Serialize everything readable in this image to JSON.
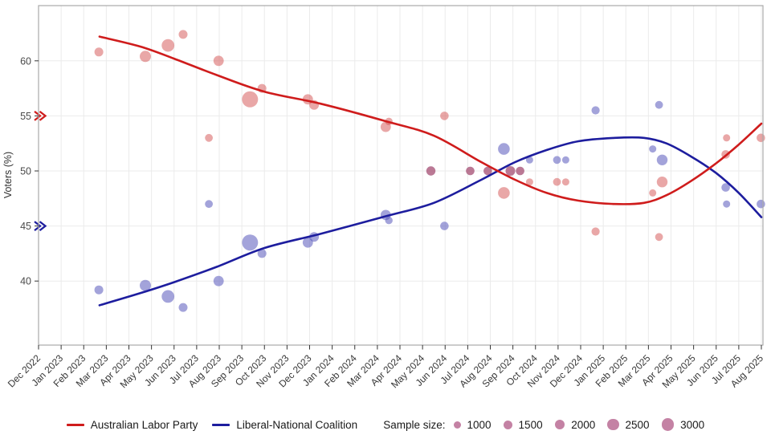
{
  "meta": {
    "description": "Two-party preferred voting intention scatter plot with smoothed trend lines, sample-size bubbles, monthly x axis Dec 2022 to Aug 2025"
  },
  "colors": {
    "alp_line": "#cf1c1c",
    "lnc_line": "#1d1d9e",
    "alp_point": "#d34f4f",
    "lnc_point": "#5858bb",
    "sample_circle": "#b5638d",
    "grid": "#ebebeb",
    "panel_border": "#a9a9a9",
    "axis_tick": "#333333",
    "tick_label": "#4a4a4a",
    "axis_title": "#333333",
    "legend_text": "#1a1a1a"
  },
  "legend": {
    "alp_label": "Australian Labor Party",
    "lnc_label": "Liberal-National Coalition",
    "sample_size_label": "Sample size:",
    "sample_sizes": [
      1000,
      1500,
      2000,
      2500,
      3000
    ]
  },
  "chart_data": {
    "type": "scatter",
    "title": "",
    "xlabel": "",
    "ylabel": "Voters (%)",
    "ylim": [
      34,
      65
    ],
    "grid": true,
    "legend_position": "bottom",
    "y_ticks": [
      40,
      45,
      50,
      55,
      60
    ],
    "x_tick_labels": [
      "Dec 2022",
      "Jan 2023",
      "Feb 2023",
      "Mar 2023",
      "Apr 2023",
      "May 2023",
      "Jun 2023",
      "Jul 2023",
      "Aug 2023",
      "Sep 2023",
      "Oct 2023",
      "Nov 2023",
      "Dec 2023",
      "Jan 2024",
      "Feb 2024",
      "Mar 2024",
      "Apr 2024",
      "May 2024",
      "Jun 2024",
      "Jul 2024",
      "Aug 2024",
      "Sep 2024",
      "Oct 2024",
      "Nov 2024",
      "Dec 2024",
      "Jan 2025",
      "Feb 2025",
      "Mar 2025",
      "Apr 2025",
      "May 2025",
      "Jun 2025",
      "Jul 2025",
      "Aug 2025"
    ],
    "series_names": [
      "Australian Labor Party",
      "Liberal-National Coalition"
    ],
    "polls": [
      {
        "date": "Feb 2023",
        "x": 2.67,
        "alp": 60.8,
        "lnc": 39.2,
        "n": 1500
      },
      {
        "date": "Apr 2023",
        "x": 4.73,
        "alp": 60.4,
        "lnc": 39.6,
        "n": 2400
      },
      {
        "date": "May 2023",
        "x": 5.73,
        "alp": 61.4,
        "lnc": 38.6,
        "n": 3100
      },
      {
        "date": "Jun 2023",
        "x": 6.4,
        "alp": 62.4,
        "lnc": 37.6,
        "n": 1500
      },
      {
        "date": "Jul 2023",
        "x": 7.54,
        "alp": 53.0,
        "lnc": 47.0,
        "n": 1200
      },
      {
        "date": "Aug 2023",
        "x": 7.97,
        "alp": 60.0,
        "lnc": 40.0,
        "n": 2000
      },
      {
        "date": "Sep 2023",
        "x": 9.36,
        "alp": 56.5,
        "lnc": 43.5,
        "n": 4900
      },
      {
        "date": "Oct 2023",
        "x": 9.89,
        "alp": 57.5,
        "lnc": 42.5,
        "n": 1500
      },
      {
        "date": "Nov 2023",
        "x": 11.92,
        "alp": 56.5,
        "lnc": 43.5,
        "n": 2000
      },
      {
        "date": "Dec 2023",
        "x": 12.2,
        "alp": 56.0,
        "lnc": 44.0,
        "n": 1800
      },
      {
        "date": "Mar 2024",
        "x": 15.37,
        "alp": 54.0,
        "lnc": 46.0,
        "n": 2000
      },
      {
        "date": "Mar 2024",
        "x": 15.51,
        "alp": 54.5,
        "lnc": 45.5,
        "n": 1100
      },
      {
        "date": "May 2024",
        "x": 17.37,
        "alp": 50.0,
        "lnc": 50.0,
        "n": 1600
      },
      {
        "date": "Jun 2024",
        "x": 17.97,
        "alp": 55.0,
        "lnc": 45.0,
        "n": 1400
      },
      {
        "date": "Jul 2024",
        "x": 19.11,
        "alp": 50.0,
        "lnc": 50.0,
        "n": 1400
      },
      {
        "date": "Aug 2024",
        "x": 19.89,
        "alp": 50.0,
        "lnc": 50.0,
        "n": 1400
      },
      {
        "date": "Aug 2024",
        "x": 20.6,
        "alp": 48.0,
        "lnc": 52.0,
        "n": 2600
      },
      {
        "date": "Sep 2024",
        "x": 20.89,
        "alp": 50.0,
        "lnc": 50.0,
        "n": 1800
      },
      {
        "date": "Sep 2024",
        "x": 21.32,
        "alp": 50.0,
        "lnc": 50.0,
        "n": 1400
      },
      {
        "date": "Sep 2024",
        "x": 21.74,
        "alp": 49.0,
        "lnc": 51.0,
        "n": 1000
      },
      {
        "date": "Nov 2024",
        "x": 22.95,
        "alp": 49.0,
        "lnc": 51.0,
        "n": 1200
      },
      {
        "date": "Nov 2024",
        "x": 23.34,
        "alp": 49.0,
        "lnc": 51.0,
        "n": 1000
      },
      {
        "date": "Jan 2025",
        "x": 24.66,
        "alp": 44.5,
        "lnc": 55.5,
        "n": 1300
      },
      {
        "date": "Mar 2025",
        "x": 27.19,
        "alp": 48.0,
        "lnc": 52.0,
        "n": 1000
      },
      {
        "date": "Apr 2025",
        "x": 27.47,
        "alp": 44.0,
        "lnc": 56.0,
        "n": 1200
      },
      {
        "date": "Apr 2025",
        "x": 27.61,
        "alp": 49.0,
        "lnc": 51.0,
        "n": 2200
      },
      {
        "date": "Jun 2025",
        "x": 30.42,
        "alp": 51.5,
        "lnc": 48.5,
        "n": 1400
      },
      {
        "date": "Jun 2025",
        "x": 30.46,
        "alp": 53.0,
        "lnc": 47.0,
        "n": 1000
      },
      {
        "date": "Aug 2025",
        "x": 31.98,
        "alp": 53.0,
        "lnc": 47.0,
        "n": 1400
      }
    ],
    "trend_alp": [
      [
        2.7,
        62.2
      ],
      [
        4.5,
        61.3
      ],
      [
        6.0,
        60.2
      ],
      [
        7.9,
        58.7
      ],
      [
        10.0,
        57.2
      ],
      [
        12.5,
        56.1
      ],
      [
        15.4,
        54.5
      ],
      [
        17.5,
        53.2
      ],
      [
        19.6,
        50.8
      ],
      [
        21.1,
        49.2
      ],
      [
        22.5,
        48.0
      ],
      [
        23.9,
        47.3
      ],
      [
        25.5,
        47.0
      ],
      [
        26.8,
        47.1
      ],
      [
        27.8,
        47.8
      ],
      [
        28.9,
        49.1
      ],
      [
        30.0,
        50.7
      ],
      [
        31.0,
        52.4
      ],
      [
        32.0,
        54.3
      ]
    ],
    "trend_lnc": [
      [
        2.7,
        37.8
      ],
      [
        4.5,
        38.9
      ],
      [
        6.0,
        39.9
      ],
      [
        7.9,
        41.3
      ],
      [
        10.0,
        43.0
      ],
      [
        12.5,
        44.3
      ],
      [
        15.4,
        45.9
      ],
      [
        17.5,
        47.1
      ],
      [
        19.6,
        49.2
      ],
      [
        21.1,
        50.8
      ],
      [
        22.5,
        51.9
      ],
      [
        23.9,
        52.7
      ],
      [
        25.5,
        53.0
      ],
      [
        26.8,
        53.0
      ],
      [
        27.8,
        52.5
      ],
      [
        28.9,
        51.3
      ],
      [
        30.0,
        49.8
      ],
      [
        31.0,
        48.0
      ],
      [
        32.0,
        45.8
      ]
    ],
    "axis_markers": [
      {
        "value": 55,
        "series": "alp"
      },
      {
        "value": 45,
        "series": "lnc"
      }
    ]
  }
}
